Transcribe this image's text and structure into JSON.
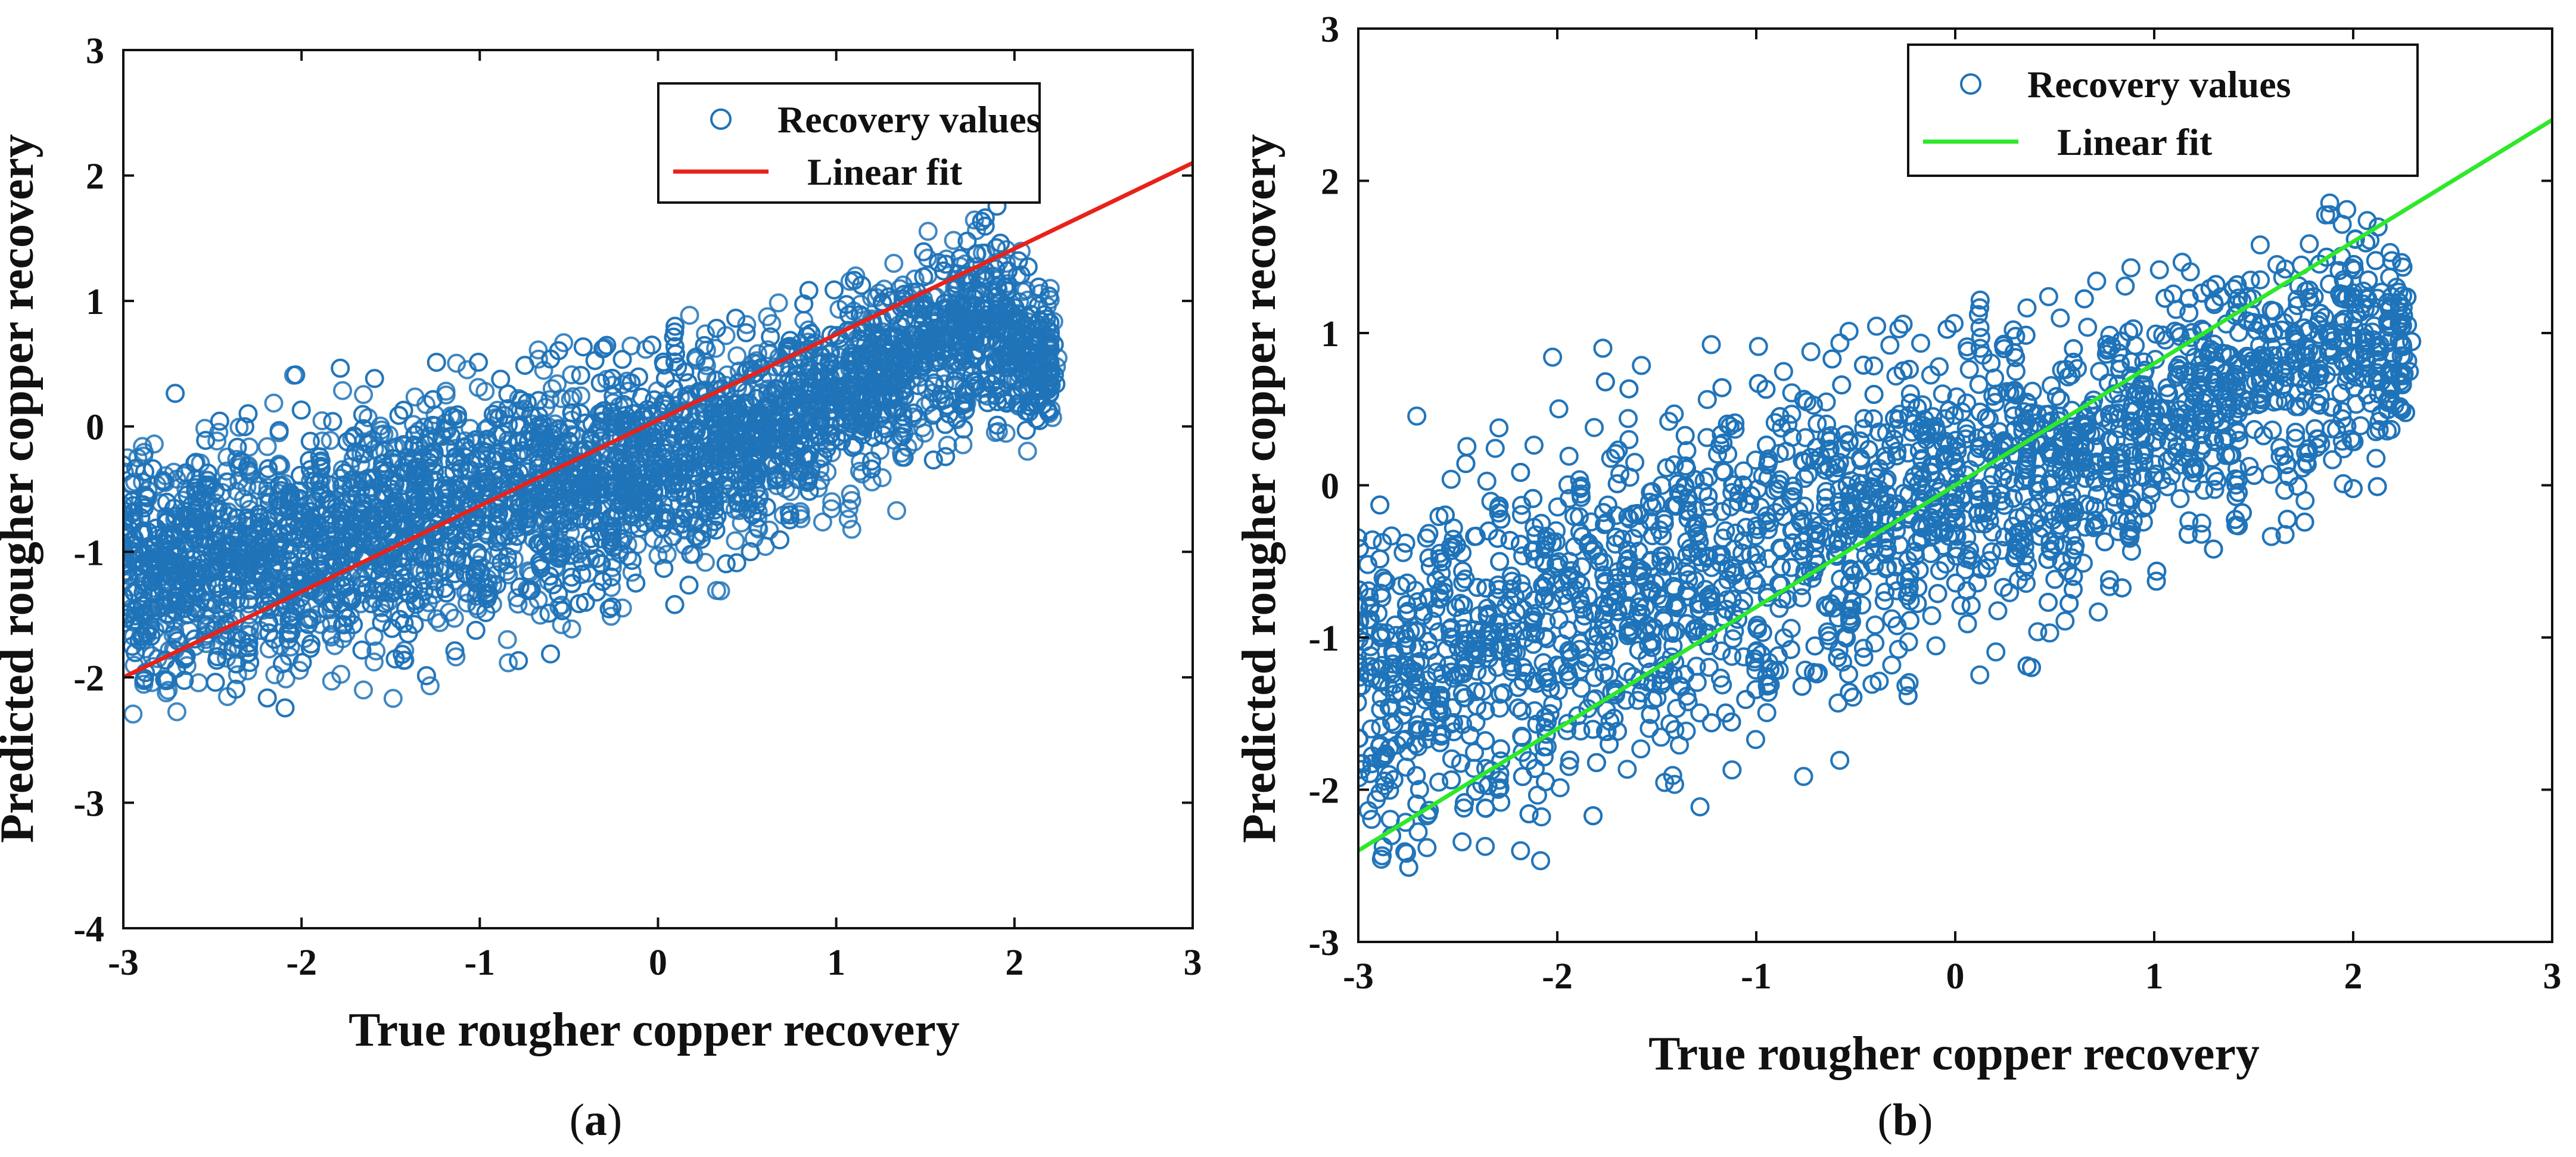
{
  "colors": {
    "markers": "#1f73b8",
    "fit_a": "#e8221a",
    "fit_b": "#2ee82a",
    "axes": "#111111"
  },
  "chart_data": [
    {
      "type": "scatter",
      "panel": "a",
      "caption": {
        "open": "(",
        "letter": "a",
        "close": ")"
      },
      "xlabel": "True rougher copper recovery",
      "ylabel": "Predicted rougher copper recovery",
      "xlim": [
        -3,
        3
      ],
      "ylim": [
        -4,
        3
      ],
      "xticks": [
        -3,
        -2,
        -1,
        0,
        1,
        2,
        3
      ],
      "yticks": [
        -4,
        -3,
        -2,
        -1,
        0,
        1,
        2,
        3
      ],
      "xtick_labels": [
        "-3",
        "-2",
        "-1",
        "0",
        "1",
        "2",
        "3"
      ],
      "ytick_labels": [
        "-4",
        "-3",
        "-2",
        "-1",
        "0",
        "1",
        "2",
        "3"
      ],
      "legend_position": "top-right",
      "series": [
        {
          "name": "Recovery values",
          "marker": "open-circle",
          "x_range": [
            -3.0,
            2.25
          ],
          "band": {
            "center": [
              [
                -3.0,
                -1.15
              ],
              [
                -2.0,
                -1.0
              ],
              [
                -1.0,
                -0.65
              ],
              [
                0.0,
                -0.35
              ],
              [
                1.0,
                0.2
              ],
              [
                1.8,
                0.85
              ],
              [
                2.2,
                0.5
              ]
            ],
            "spread": [
              [
                -3.0,
                1.0
              ],
              [
                -2.0,
                1.05
              ],
              [
                -1.0,
                0.95
              ],
              [
                0.0,
                0.95
              ],
              [
                1.0,
                0.85
              ],
              [
                1.8,
                0.85
              ],
              [
                2.2,
                0.6
              ]
            ]
          }
        },
        {
          "name": "Linear fit",
          "type": "line",
          "x": [
            -3,
            3
          ],
          "y": [
            -2.0,
            2.1
          ]
        }
      ]
    },
    {
      "type": "scatter",
      "panel": "b",
      "caption": {
        "open": "(",
        "letter": "b",
        "close": ")"
      },
      "xlabel": "True rougher copper recovery",
      "ylabel": "Predicted rougher copper recovery",
      "xlim": [
        -3,
        3
      ],
      "ylim": [
        -3,
        3
      ],
      "xticks": [
        -3,
        -2,
        -1,
        0,
        1,
        2,
        3
      ],
      "yticks": [
        -3,
        -2,
        -1,
        0,
        1,
        2,
        3
      ],
      "xtick_labels": [
        "-3",
        "-2",
        "-1",
        "0",
        "1",
        "2",
        "3"
      ],
      "ytick_labels": [
        "-3",
        "-2",
        "-1",
        "0",
        "1",
        "2",
        "3"
      ],
      "legend_position": "top-right",
      "series": [
        {
          "name": "Recovery values",
          "marker": "open-circle",
          "x_range": [
            -3.0,
            2.3
          ],
          "band": {
            "center": [
              [
                -3.0,
                -1.4
              ],
              [
                -2.0,
                -0.9
              ],
              [
                -1.0,
                -0.5
              ],
              [
                0.0,
                -0.05
              ],
              [
                1.0,
                0.35
              ],
              [
                2.0,
                0.95
              ],
              [
                2.3,
                0.9
              ]
            ],
            "spread": [
              [
                -3.0,
                1.25
              ],
              [
                -2.0,
                1.3
              ],
              [
                -1.0,
                1.15
              ],
              [
                0.0,
                1.05
              ],
              [
                1.0,
                1.0
              ],
              [
                2.0,
                0.95
              ],
              [
                2.3,
                0.55
              ]
            ]
          }
        },
        {
          "name": "Linear fit",
          "type": "line",
          "x": [
            -3,
            3
          ],
          "y": [
            -2.4,
            2.4
          ]
        }
      ]
    }
  ]
}
